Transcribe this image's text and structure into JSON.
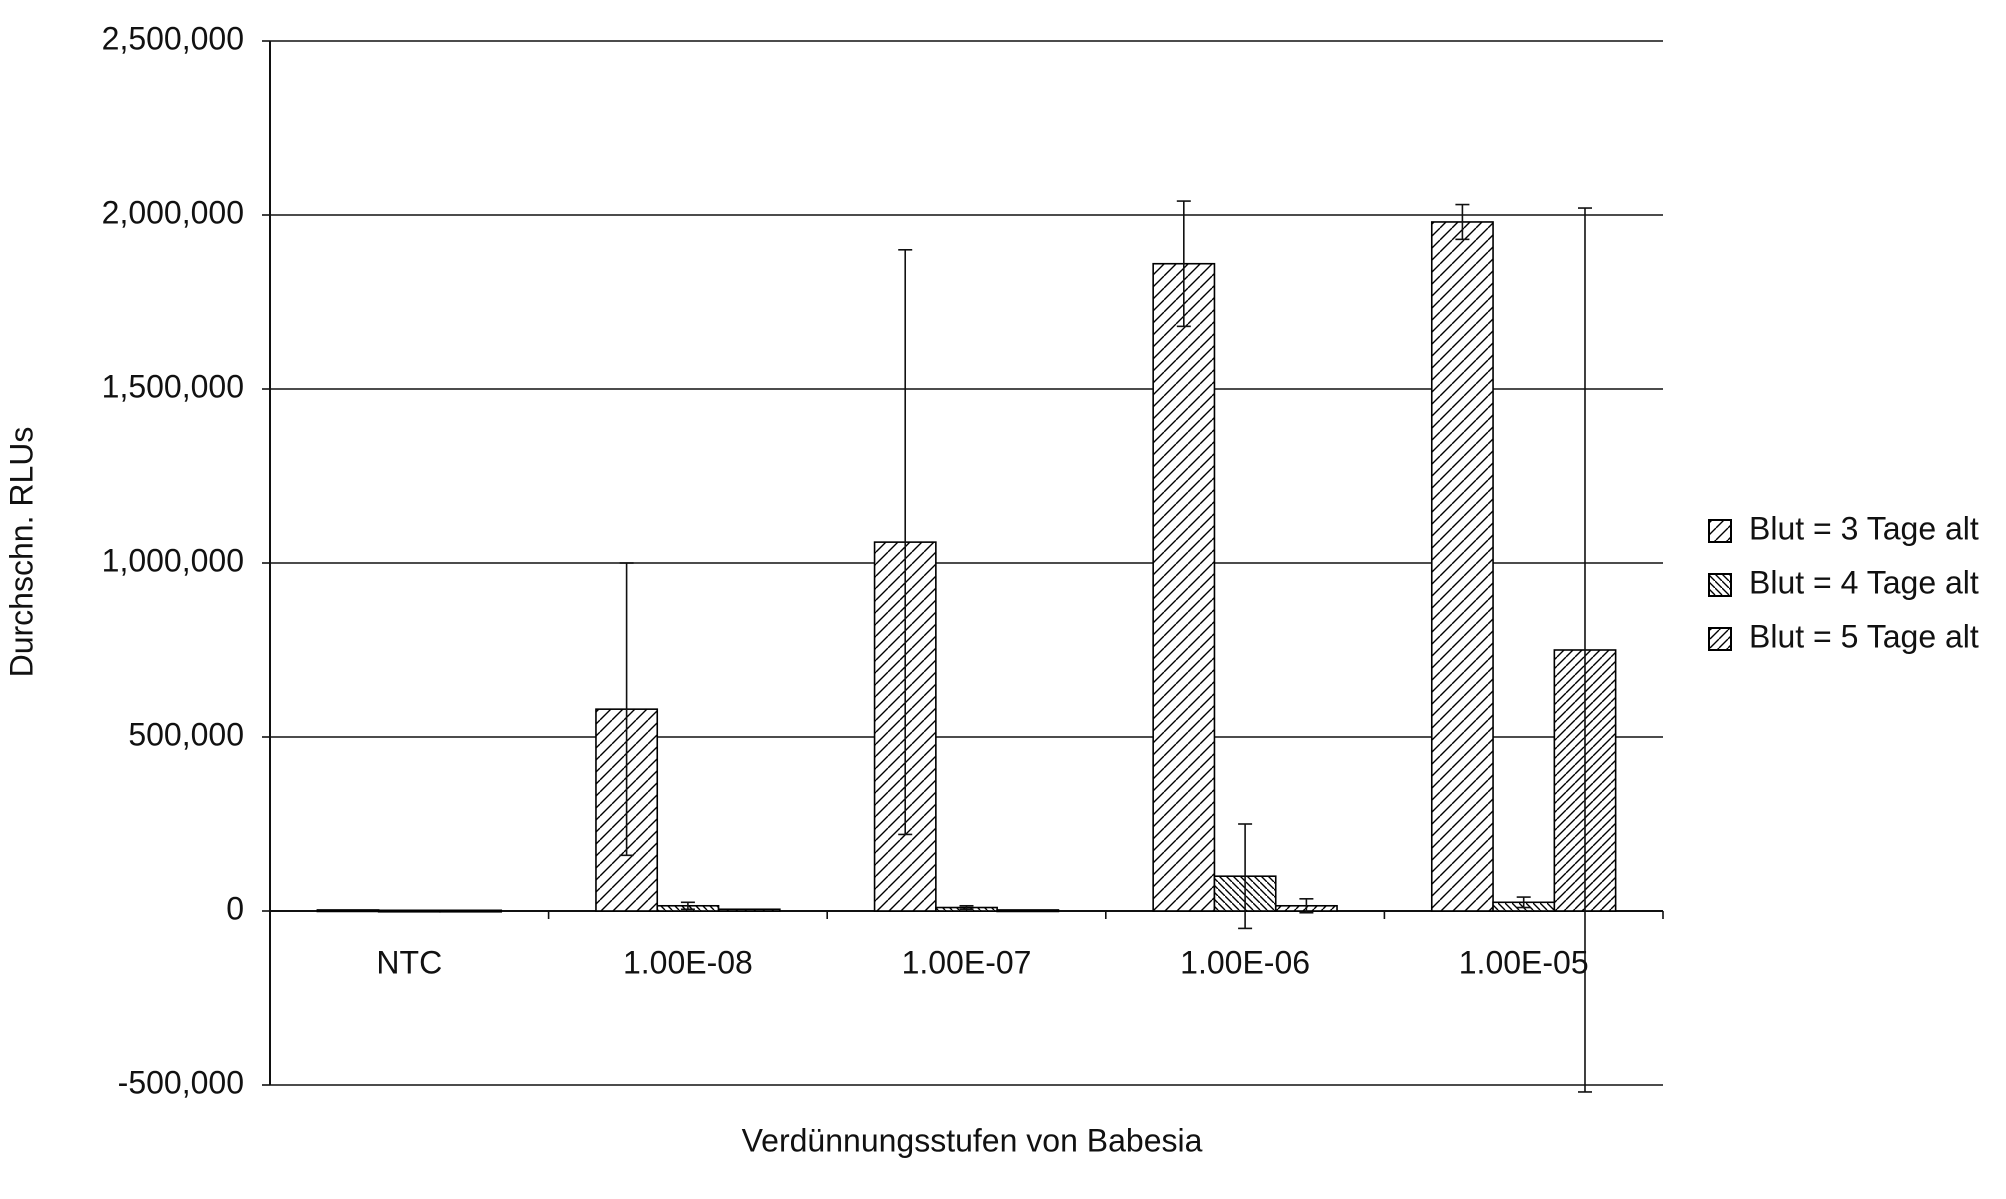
{
  "chart_data": {
    "type": "bar",
    "x_label": "Verdünnungsstufen von Babesia",
    "y_label": "Durchschn. RLUs",
    "categories": [
      "NTC",
      "1.00E-08",
      "1.00E-07",
      "1.00E-06",
      "1.00E-05"
    ],
    "series": [
      {
        "name": "Blut = 3 Tage alt",
        "color": "#000000",
        "hatch": "/",
        "values": [
          3000,
          580000,
          1060000,
          1860000,
          1980000
        ],
        "errors": [
          null,
          420000,
          840000,
          180000,
          50000
        ]
      },
      {
        "name": "Blut = 4 Tage alt",
        "color": "#000000",
        "hatch": "\\",
        "values": [
          2000,
          15000,
          10000,
          100000,
          25000
        ],
        "errors": [
          null,
          10000,
          5000,
          150000,
          15000
        ]
      },
      {
        "name": "Blut = 5 Tage alt",
        "color": "#000000",
        "hatch": "//",
        "values": [
          2000,
          5000,
          3000,
          15000,
          750000
        ],
        "errors": [
          null,
          null,
          null,
          20000,
          1270000
        ]
      }
    ],
    "ylim": [
      -500000,
      2500000
    ],
    "yticks": [
      {
        "value": -500000,
        "label": "-500,000"
      },
      0,
      {
        "value": 500000,
        "label": "500,000"
      },
      {
        "value": 1000000,
        "label": "1,000,000"
      },
      {
        "value": 1500000,
        "label": "1,500,000"
      },
      {
        "value": 2000000,
        "label": "2,000,000"
      },
      {
        "value": 2500000,
        "label": "2,500,000"
      }
    ],
    "grid": true,
    "legend": "right"
  }
}
